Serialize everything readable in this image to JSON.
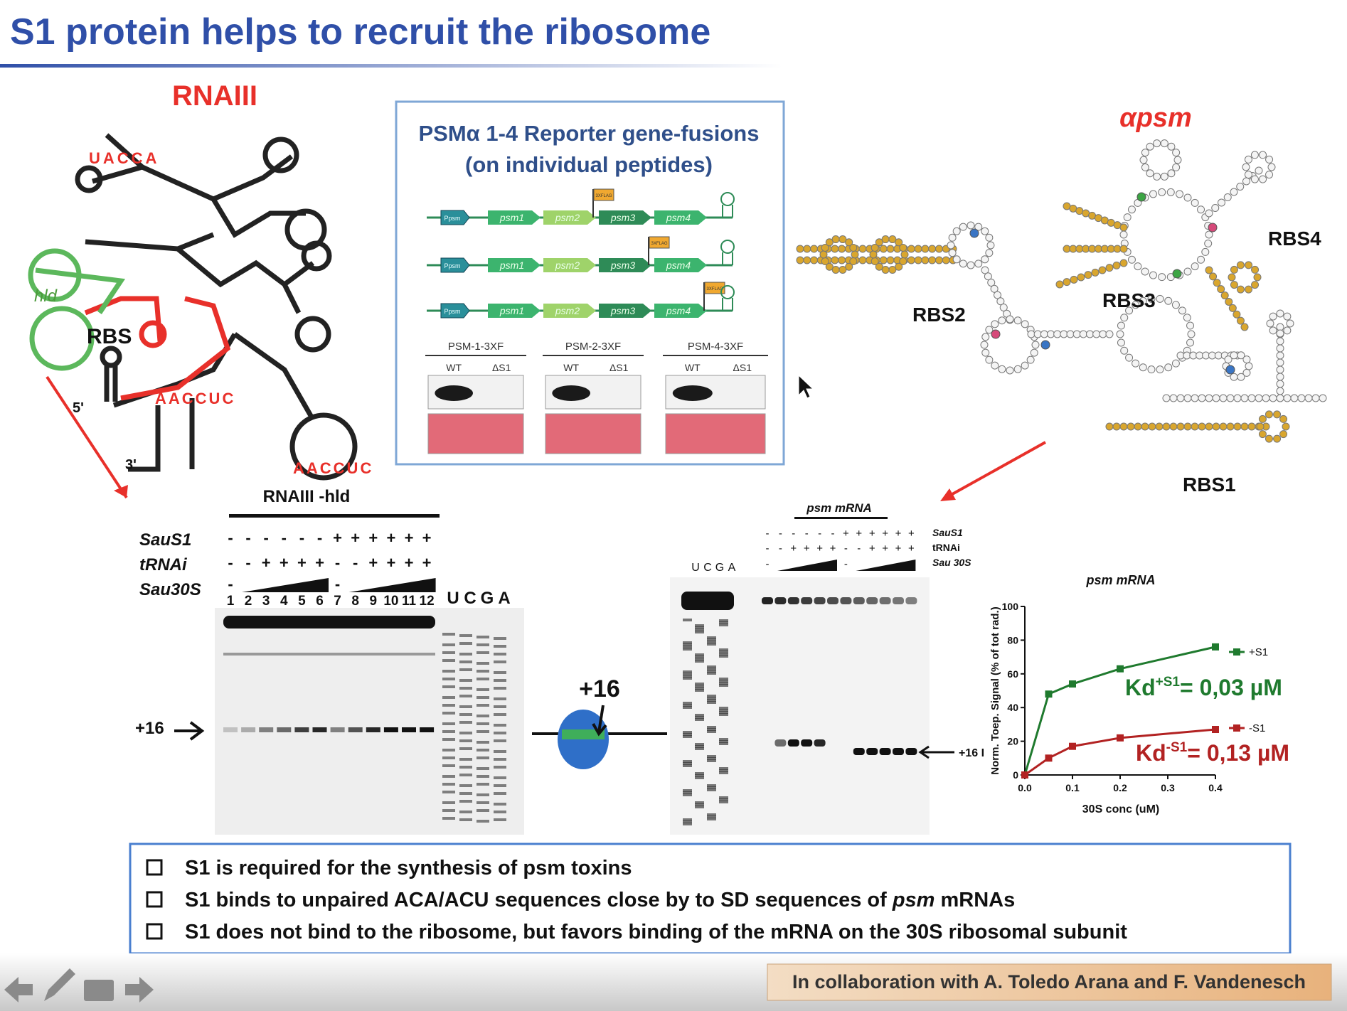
{
  "title": "S1 protein helps to recruit the ribosome",
  "rna3": {
    "label": "RNAIII",
    "hld": "hld",
    "rbs": "RBS",
    "five_prime": "5'",
    "three_prime": "3'",
    "loop_top": "UACCA",
    "loop_mid": "AACCUC",
    "loop_bottom": "AACCUC"
  },
  "reporter": {
    "title_line1": "PSMα 1-4 Reporter gene-fusions",
    "title_line2": "(on individual peptides)",
    "promoter": "Ppsm",
    "genes": [
      "psm1",
      "psm2",
      "psm3",
      "psm4"
    ],
    "tag": "3XFLAG",
    "blots": [
      {
        "label": "PSM-1-3XF",
        "lanes": [
          "WT",
          "ΔS1"
        ]
      },
      {
        "label": "PSM-2-3XF",
        "lanes": [
          "WT",
          "ΔS1"
        ]
      },
      {
        "label": "PSM-4-3XF",
        "lanes": [
          "WT",
          "ΔS1"
        ]
      }
    ]
  },
  "apsm": {
    "label": "αpsm",
    "rbs1": "RBS1",
    "rbs2": "RBS2",
    "rbs3": "RBS3",
    "rbs4": "RBS4"
  },
  "gel1": {
    "title": "RNAIII -hld",
    "row_labels": [
      "SauS1",
      "tRNAi",
      "Sau30S"
    ],
    "saus1": [
      "-",
      "-",
      "-",
      "-",
      "-",
      "-",
      "+",
      "+",
      "+",
      "+",
      "+",
      "+"
    ],
    "trnai": [
      "-",
      "-",
      "+",
      "+",
      "+",
      "+",
      "-",
      "-",
      "+",
      "+",
      "+",
      "+"
    ],
    "sau30s": [
      "-",
      "-"
    ],
    "lanes": [
      "1",
      "2",
      "3",
      "4",
      "5",
      "6",
      "7",
      "8",
      "9",
      "10",
      "11",
      "12"
    ],
    "ladder": [
      "U",
      "C",
      "G",
      "A"
    ],
    "marker": "+16"
  },
  "ribosome_label": "+16",
  "gel2": {
    "title": "psm mRNA",
    "row_labels": [
      "SauS1",
      "tRNAi",
      "Sau 30S"
    ],
    "saus1": [
      "-",
      "-",
      "-",
      "-",
      "-",
      "-",
      "+",
      "+",
      "+",
      "+",
      "+",
      "+"
    ],
    "trnai": [
      "-",
      "-",
      "+",
      "+",
      "+",
      "+",
      "-",
      "-",
      "+",
      "+",
      "+",
      "+"
    ],
    "sau30s": [
      "-",
      "-"
    ],
    "ladder": [
      "U",
      "C",
      "G",
      "A"
    ],
    "marker": "+16 I"
  },
  "plot": {
    "type": "scatter",
    "title": "psm mRNA",
    "xlabel": "30S conc (uM)",
    "ylabel": "Norm. Toep. Signal (% of tot rad.)",
    "xlim": [
      0,
      0.4
    ],
    "xticks": [
      {
        "value": 0,
        "label": "0.0"
      },
      0.1,
      0.2,
      0.3,
      0.4
    ],
    "ylim": [
      0,
      100
    ],
    "yticks": [
      0,
      20,
      40,
      60,
      80,
      100
    ],
    "series": [
      {
        "name": "+S1",
        "color": "#1f7a2e",
        "x": [
          0,
          0.05,
          0.1,
          0.2,
          0.4
        ],
        "values": [
          0,
          48,
          54,
          63,
          76
        ]
      },
      {
        "name": "-S1",
        "color": "#b22222",
        "x": [
          0,
          0.05,
          0.1,
          0.2,
          0.4
        ],
        "values": [
          0,
          10,
          17,
          22,
          27
        ]
      }
    ],
    "kd_labels": [
      {
        "base": "Kd",
        "sup": "+S1",
        "rest": "= 0,03 µM"
      },
      {
        "base": "Kd",
        "sup": "-S1",
        "rest": "= 0,13 µM"
      }
    ]
  },
  "bullets": [
    [
      {
        "text": "S1 is required for the synthesis of psm toxins"
      }
    ],
    [
      {
        "text": "S1 binds to unpaired ACA/ACU sequences close by to SD sequences of "
      },
      {
        "text": "psm",
        "italic": true
      },
      {
        "text": " mRNAs"
      }
    ],
    [
      {
        "text": "S1 does not bind to the ribosome, but favors binding of the mRNA on the 30S ribosomal subunit"
      }
    ]
  ],
  "credit": "In collaboration with A. Toledo Arana and F. Vandenesch"
}
